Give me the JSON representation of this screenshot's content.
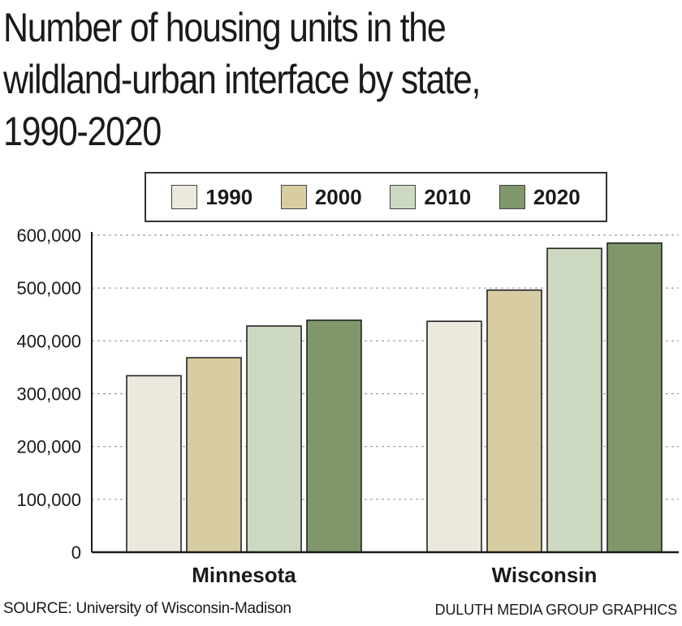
{
  "title_lines": [
    "Number of housing units in the",
    "wildland-urban interface by state,",
    "1990-2020"
  ],
  "legend": [
    {
      "label": "1990",
      "color": "#ece8de"
    },
    {
      "label": "2000",
      "color": "#d8cca2"
    },
    {
      "label": "2010",
      "color": "#cdd9c0"
    },
    {
      "label": "2020",
      "color": "#7f976b"
    }
  ],
  "source": "SOURCE: University of Wisconsin-Madison",
  "credit": "DULUTH MEDIA GROUP GRAPHICS",
  "chart_data": {
    "type": "bar",
    "title": "Number of housing units in the wildland-urban interface by state, 1990-2020",
    "categories": [
      "Minnesota",
      "Wisconsin"
    ],
    "series": [
      {
        "name": "1990",
        "values": [
          334000,
          437000
        ]
      },
      {
        "name": "2000",
        "values": [
          368000,
          496000
        ]
      },
      {
        "name": "2010",
        "values": [
          428000,
          575000
        ]
      },
      {
        "name": "2020",
        "values": [
          439000,
          585000
        ]
      }
    ],
    "ylim": [
      0,
      600000
    ],
    "yticks": [
      "0",
      "100,000",
      "200,000",
      "300,000",
      "400,000",
      "500,000",
      "600,000"
    ],
    "grid": true,
    "legend_position": "top"
  }
}
